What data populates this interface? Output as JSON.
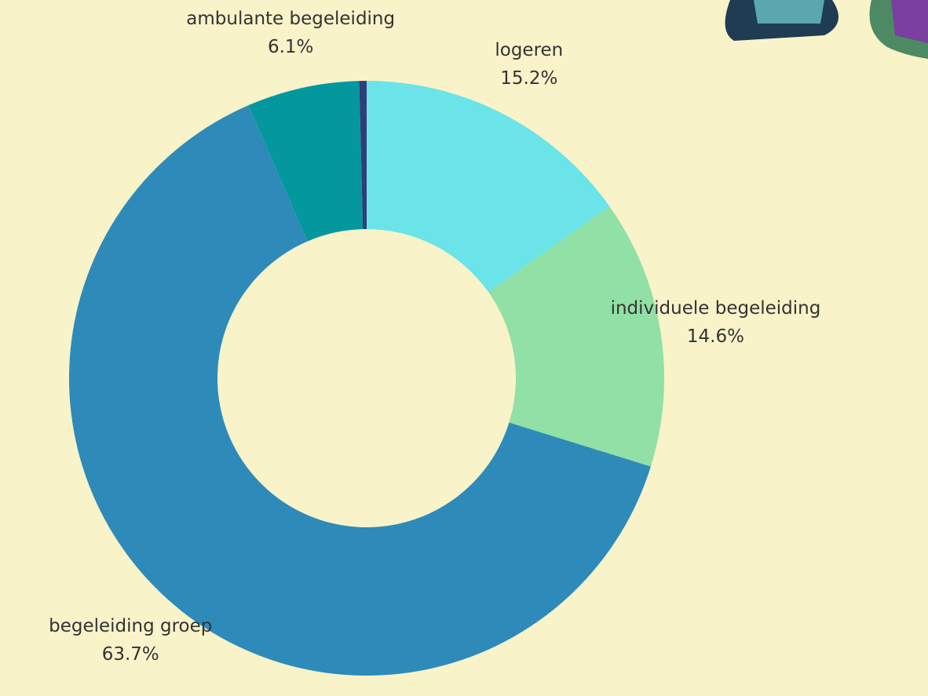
{
  "chart_data": {
    "type": "donut",
    "categories": [
      "logeren",
      "individuele begeleiding",
      "begeleiding groep",
      "ambulante begeleiding",
      null
    ],
    "values": [
      15.2,
      14.6,
      63.7,
      6.1,
      0.4
    ],
    "value_labels": [
      "15.2%",
      "14.6%",
      "63.7%",
      "6.1%",
      null
    ],
    "colors": [
      "#6ae4e8",
      "#91e0a6",
      "#2e8bb9",
      "#05979e",
      "#2f3d7a"
    ]
  }
}
